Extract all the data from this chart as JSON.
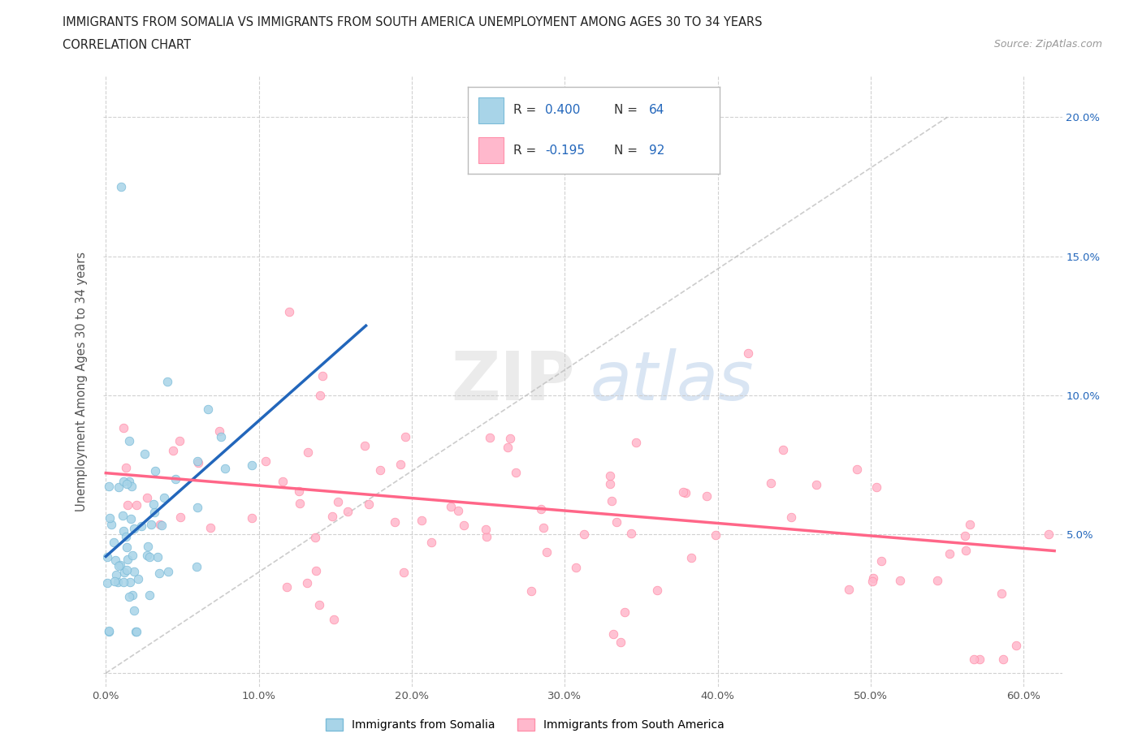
{
  "title_line1": "IMMIGRANTS FROM SOMALIA VS IMMIGRANTS FROM SOUTH AMERICA UNEMPLOYMENT AMONG AGES 30 TO 34 YEARS",
  "title_line2": "CORRELATION CHART",
  "source_text": "Source: ZipAtlas.com",
  "ylabel": "Unemployment Among Ages 30 to 34 years",
  "xlim": [
    -0.002,
    0.625
  ],
  "ylim": [
    -0.005,
    0.215
  ],
  "somalia_color": "#A8D4E8",
  "somalia_edge": "#7ABBD8",
  "south_america_color": "#FFB8CC",
  "south_america_edge": "#FF90AA",
  "trend_somalia_color": "#2266BB",
  "trend_sa_color": "#FF6688",
  "text_blue": "#2266BB",
  "text_dark": "#333333",
  "legend_label_somalia": "Immigrants from Somalia",
  "legend_label_south_america": "Immigrants from South America",
  "somalia_trend_x0": 0.0,
  "somalia_trend_y0": 0.042,
  "somalia_trend_x1": 0.17,
  "somalia_trend_y1": 0.125,
  "sa_trend_x0": 0.0,
  "sa_trend_y0": 0.072,
  "sa_trend_x1": 0.62,
  "sa_trend_y1": 0.044,
  "ref_line_x0": 0.0,
  "ref_line_y0": 0.0,
  "ref_line_x1": 0.55,
  "ref_line_y1": 0.2
}
